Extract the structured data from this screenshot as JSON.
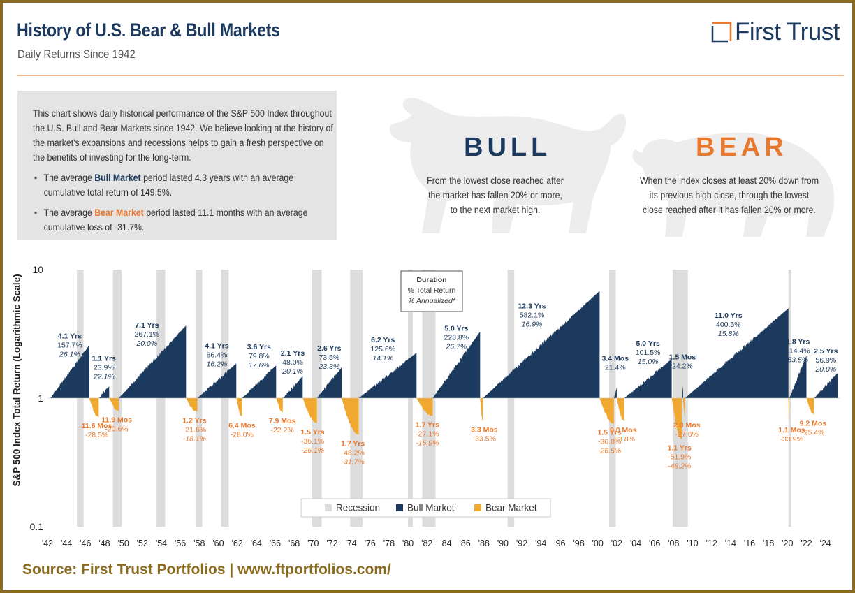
{
  "header": {
    "title": "History of U.S. Bear & Bull Markets",
    "subtitle": "Daily Returns Since 1942",
    "logo_text": "First Trust"
  },
  "intro": {
    "paragraph": "This chart shows daily historical performance of the S&P 500 Index throughout the U.S. Bull and Bear Markets since 1942. We believe looking at the history of the market's expansions and recessions helps to gain a fresh perspective on the benefits of investing for the long-term.",
    "bullet1_pre": "The average ",
    "bullet1_hl": "Bull Market",
    "bullet1_post": " period lasted 4.3 years with an average cumulative total return of 149.5%.",
    "bullet2_pre": "The average ",
    "bullet2_hl": "Bear Market",
    "bullet2_post": " period lasted 11.1 months with an average cumulative loss of -31.7%."
  },
  "definitions": {
    "bull_title": "BULL",
    "bull_l1": "From the lowest close reached after",
    "bull_l2": "the market has fallen 20% or more,",
    "bull_l3": "to the next market high.",
    "bear_title": "BEAR",
    "bear_l1": "When the index closes at least 20% down from",
    "bear_l2": "its previous high close, through the lowest",
    "bear_l3": "close reached after it has fallen 20% or more."
  },
  "source": "Source: First Trust Portfolios | www.ftportfolios.com/",
  "colors": {
    "bull": "#1c3a5e",
    "bear": "#f0a830",
    "bear_text": "#e8782e",
    "recession": "#dcdcdc",
    "frame": "#8a6a1e"
  },
  "chart_data": {
    "type": "area",
    "title": "",
    "ylabel": "S&P 500 Index Total Return (Logarithmic Scale)",
    "yscale": "log",
    "ylim": [
      0.1,
      10
    ],
    "yticks": [
      "10",
      "1",
      "0.1"
    ],
    "xlim": [
      1942,
      2025.5
    ],
    "xticks": [
      "'42",
      "'44",
      "'46",
      "'48",
      "'50",
      "'52",
      "'54",
      "'56",
      "'58",
      "'60",
      "'62",
      "'64",
      "'66",
      "'68",
      "'70",
      "'72",
      "'74",
      "'76",
      "'78",
      "'80",
      "'82",
      "'84",
      "'86",
      "'88",
      "'90",
      "'92",
      "'94",
      "'96",
      "'98",
      "'00",
      "'02",
      "'04",
      "'06",
      "'08",
      "'10",
      "'12",
      "'14",
      "'16",
      "'18",
      "'20",
      "'22",
      "'24"
    ],
    "legend": [
      "Recession",
      "Bull Market",
      "Bear Market"
    ],
    "legend_position": "bottom-center",
    "key_box": {
      "line1": "Duration",
      "line2": "% Total Return",
      "line3": "% Annualized*"
    },
    "recessions": [
      [
        1945.1,
        1945.8
      ],
      [
        1948.9,
        1949.8
      ],
      [
        1953.5,
        1954.4
      ],
      [
        1957.6,
        1958.3
      ],
      [
        1960.3,
        1961.1
      ],
      [
        1969.9,
        1970.9
      ],
      [
        1973.9,
        1975.2
      ],
      [
        1980.0,
        1980.5
      ],
      [
        1981.5,
        1982.9
      ],
      [
        1990.5,
        1991.2
      ],
      [
        2001.2,
        2001.9
      ],
      [
        2007.9,
        2009.5
      ],
      [
        2020.1,
        2020.4
      ]
    ],
    "bull_markets": [
      {
        "start": 1942.3,
        "end": 1946.4,
        "duration": "4.1 Yrs",
        "total": "157.7%",
        "annualized": "26.1%"
      },
      {
        "start": 1947.4,
        "end": 1948.5,
        "duration": "1.1 Yrs",
        "total": "23.9%",
        "annualized": "22.1%"
      },
      {
        "start": 1949.5,
        "end": 1956.6,
        "duration": "7.1 Yrs",
        "total": "267.1%",
        "annualized": "20.0%"
      },
      {
        "start": 1957.8,
        "end": 1961.9,
        "duration": "4.1 Yrs",
        "total": "86.4%",
        "annualized": "16.2%"
      },
      {
        "start": 1962.5,
        "end": 1966.1,
        "duration": "3.6 Yrs",
        "total": "79.8%",
        "annualized": "17.6%"
      },
      {
        "start": 1966.8,
        "end": 1968.9,
        "duration": "2.1 Yrs",
        "total": "48.0%",
        "annualized": "20.1%"
      },
      {
        "start": 1970.4,
        "end": 1973.0,
        "duration": "2.6 Yrs",
        "total": "73.5%",
        "annualized": "23.3%"
      },
      {
        "start": 1974.8,
        "end": 1980.9,
        "duration": "6.2 Yrs",
        "total": "125.6%",
        "annualized": "14.1%"
      },
      {
        "start": 1982.6,
        "end": 1987.6,
        "duration": "5.0 Yrs",
        "total": "228.8%",
        "annualized": "26.7%"
      },
      {
        "start": 1987.9,
        "end": 2000.2,
        "duration": "12.3 Yrs",
        "total": "582.1%",
        "annualized": "16.9%"
      },
      {
        "start": 2001.7,
        "end": 2002.0,
        "duration": "3.4 Mos",
        "total": "21.4%",
        "annualized": ""
      },
      {
        "start": 2002.8,
        "end": 2007.8,
        "duration": "5.0 Yrs",
        "total": "101.5%",
        "annualized": "15.0%"
      },
      {
        "start": 2008.85,
        "end": 2009.0,
        "duration": "1.5 Mos",
        "total": "24.2%",
        "annualized": ""
      },
      {
        "start": 2009.2,
        "end": 2020.1,
        "duration": "11.0 Yrs",
        "total": "400.5%",
        "annualized": "15.8%"
      },
      {
        "start": 2020.2,
        "end": 2022.0,
        "duration": "1.8 Yrs",
        "total": "114.4%",
        "annualized": "53.5%"
      },
      {
        "start": 2022.8,
        "end": 2025.3,
        "duration": "2.5 Yrs",
        "total": "56.9%",
        "annualized": "20.0%"
      }
    ],
    "bear_markets": [
      {
        "start": 1946.4,
        "end": 1947.4,
        "duration": "11.6 Mos",
        "total": "-28.5%",
        "annualized": ""
      },
      {
        "start": 1948.5,
        "end": 1949.5,
        "duration": "11.9 Mos",
        "total": "-20.6%",
        "annualized": ""
      },
      {
        "start": 1956.6,
        "end": 1957.8,
        "duration": "1.2 Yrs",
        "total": "-21.6%",
        "annualized": "-18.1%"
      },
      {
        "start": 1961.9,
        "end": 1962.5,
        "duration": "6.4 Mos",
        "total": "-28.0%",
        "annualized": ""
      },
      {
        "start": 1966.1,
        "end": 1966.8,
        "duration": "7.9 Mos",
        "total": "-22.2%",
        "annualized": ""
      },
      {
        "start": 1968.9,
        "end": 1970.4,
        "duration": "1.5 Yrs",
        "total": "-36.1%",
        "annualized": "-26.1%"
      },
      {
        "start": 1973.0,
        "end": 1974.8,
        "duration": "1.7 Yrs",
        "total": "-48.2%",
        "annualized": "-31.7%"
      },
      {
        "start": 1980.9,
        "end": 1982.6,
        "duration": "1.7 Yrs",
        "total": "-27.1%",
        "annualized": "-16.9%"
      },
      {
        "start": 1987.6,
        "end": 1987.9,
        "duration": "3.3 Mos",
        "total": "-33.5%",
        "annualized": ""
      },
      {
        "start": 2000.2,
        "end": 2001.7,
        "duration": "1.5 Yrs",
        "total": "-36.8%",
        "annualized": "-26.5%"
      },
      {
        "start": 2002.0,
        "end": 2002.8,
        "duration": "9.0 Mos",
        "total": "-33.8%",
        "annualized": ""
      },
      {
        "start": 2007.8,
        "end": 2008.85,
        "duration": "1.1 Yrs",
        "total": "-51.9%",
        "annualized": "-48.2%"
      },
      {
        "start": 2009.0,
        "end": 2009.2,
        "duration": "2.0 Mos",
        "total": "-27.6%",
        "annualized": ""
      },
      {
        "start": 2020.1,
        "end": 2020.2,
        "duration": "1.1 Mos",
        "total": "-33.9%",
        "annualized": ""
      },
      {
        "start": 2022.0,
        "end": 2022.8,
        "duration": "9.2 Mos",
        "total": "-25.4%",
        "annualized": ""
      }
    ]
  }
}
